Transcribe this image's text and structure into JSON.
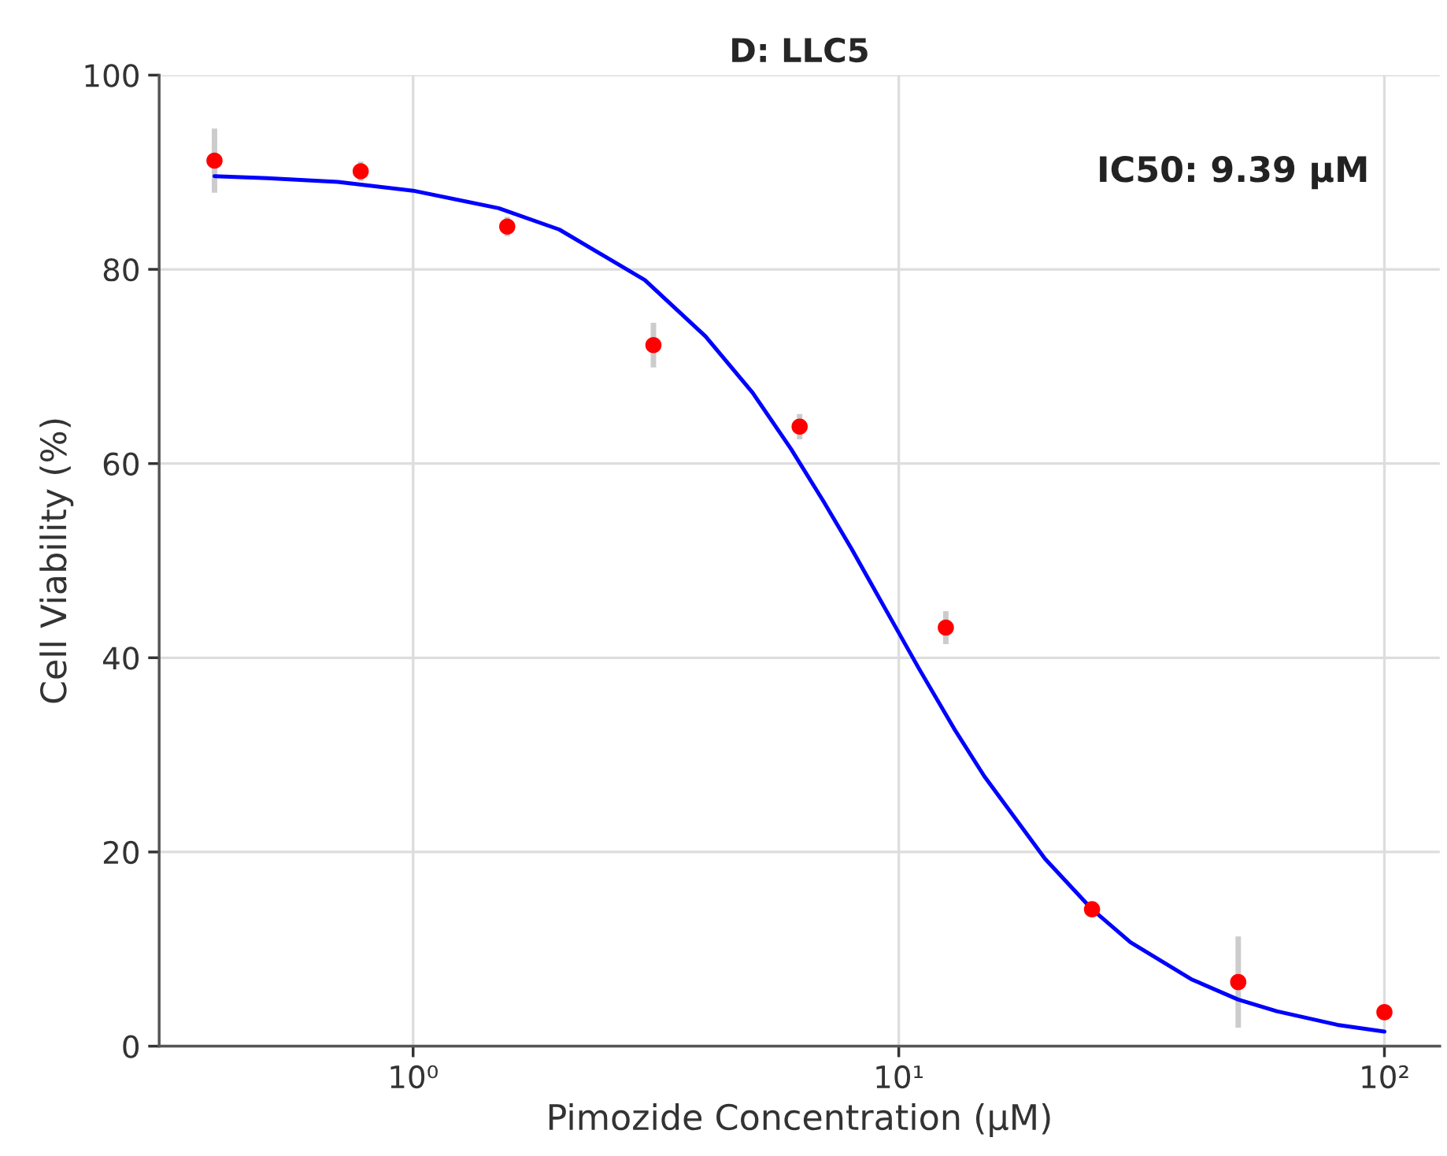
{
  "chart_data": {
    "type": "scatter",
    "title": "D: LLC5",
    "xlabel": "Pimozide Concentration (μM)",
    "ylabel": "Cell Viability (%)",
    "log": "x",
    "xlim": [
      0.3,
      130
    ],
    "xticks": [
      {
        "value": 1,
        "label": "10⁰"
      },
      {
        "value": 10,
        "label": "10¹"
      },
      {
        "value": 100,
        "label": "10²"
      }
    ],
    "ylim": [
      0,
      100
    ],
    "yticks": [
      0,
      20,
      40,
      60,
      80,
      100
    ],
    "grid": true,
    "legend": false,
    "annotations": [
      "IC50: 9.39 μM"
    ],
    "series": [
      {
        "type": "line",
        "color": "#0000ff",
        "marker": "none",
        "line_style": "solid",
        "x": [
          0.39,
          0.5,
          0.7,
          1,
          1.5,
          2,
          3,
          4,
          5,
          6,
          7,
          8,
          9.39,
          11,
          13,
          15,
          20,
          25,
          30,
          40,
          50,
          60,
          80,
          100
        ],
        "values": [
          89.6,
          89.4,
          89.0,
          88.1,
          86.3,
          84.1,
          78.9,
          73.1,
          67.3,
          61.5,
          56.1,
          51.2,
          45.0,
          38.9,
          32.7,
          27.8,
          19.3,
          14.1,
          10.7,
          6.9,
          4.8,
          3.6,
          2.2,
          1.5
        ]
      },
      {
        "color": "#ff0000",
        "marker": "circle",
        "x": [
          0.39,
          0.78,
          1.5625,
          3.125,
          6.25,
          12.5,
          25,
          50,
          100
        ],
        "values": [
          91.2,
          90.1,
          84.4,
          72.2,
          63.8,
          43.1,
          14.1,
          6.6,
          3.5
        ],
        "errors": [
          3.3,
          1.0,
          1.0,
          2.3,
          1.3,
          1.7,
          null,
          4.7,
          null
        ]
      }
    ]
  }
}
